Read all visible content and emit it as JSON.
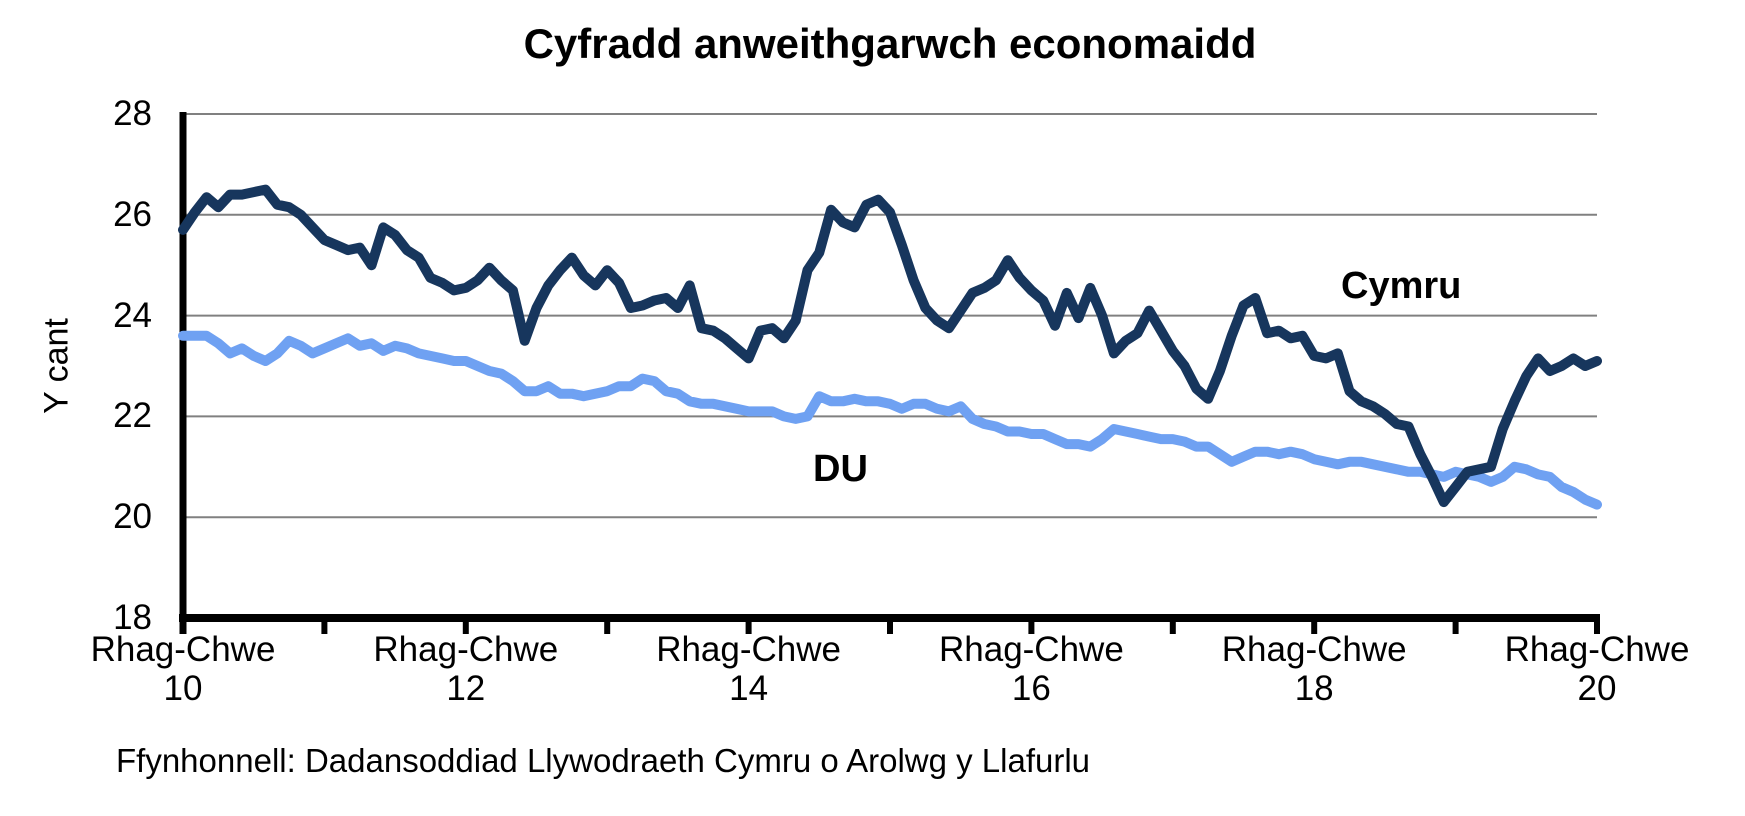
{
  "chart_data": {
    "type": "line",
    "title": "Cyfradd anweithgarwch economaidd",
    "ylabel": "Y cant",
    "ylim": [
      18,
      28
    ],
    "y_ticks": [
      28,
      26,
      24,
      22,
      20,
      18
    ],
    "grid": "horizontal-gray",
    "legend_position": "inline-labels-on-chart",
    "x_start_year": 10,
    "x_end_year": 20,
    "x_points_per_year": 12,
    "x_tick_every_year": 1,
    "x_label_every_years": 2,
    "x_tick_labels": [
      {
        "period": "Rhag-Chwe",
        "year": "10"
      },
      {
        "period": "Rhag-Chwe",
        "year": "12"
      },
      {
        "period": "Rhag-Chwe",
        "year": "14"
      },
      {
        "period": "Rhag-Chwe",
        "year": "16"
      },
      {
        "period": "Rhag-Chwe",
        "year": "18"
      },
      {
        "period": "Rhag-Chwe",
        "year": "20"
      }
    ],
    "series": [
      {
        "name": "DU",
        "color": "#6FA1F2",
        "values": [
          23.6,
          23.6,
          23.6,
          23.45,
          23.25,
          23.35,
          23.2,
          23.1,
          23.25,
          23.5,
          23.4,
          23.25,
          23.35,
          23.45,
          23.55,
          23.4,
          23.45,
          23.3,
          23.4,
          23.35,
          23.25,
          23.2,
          23.15,
          23.1,
          23.1,
          23.0,
          22.9,
          22.85,
          22.7,
          22.5,
          22.5,
          22.6,
          22.45,
          22.45,
          22.4,
          22.45,
          22.5,
          22.6,
          22.6,
          22.75,
          22.7,
          22.5,
          22.45,
          22.3,
          22.25,
          22.25,
          22.2,
          22.15,
          22.1,
          22.1,
          22.1,
          22.0,
          21.95,
          22.0,
          22.4,
          22.3,
          22.3,
          22.35,
          22.3,
          22.3,
          22.25,
          22.15,
          22.25,
          22.25,
          22.15,
          22.1,
          22.2,
          21.95,
          21.85,
          21.8,
          21.7,
          21.7,
          21.65,
          21.65,
          21.55,
          21.45,
          21.45,
          21.4,
          21.55,
          21.75,
          21.7,
          21.65,
          21.6,
          21.55,
          21.55,
          21.5,
          21.4,
          21.4,
          21.25,
          21.1,
          21.2,
          21.3,
          21.3,
          21.25,
          21.3,
          21.25,
          21.15,
          21.1,
          21.05,
          21.1,
          21.1,
          21.05,
          21.0,
          20.95,
          20.9,
          20.9,
          20.85,
          20.8,
          20.9,
          20.85,
          20.8,
          20.7,
          20.8,
          21.0,
          20.95,
          20.85,
          20.8,
          20.6,
          20.5,
          20.35,
          20.25
        ]
      },
      {
        "name": "Cymru",
        "color": "#17365D",
        "values": [
          25.7,
          26.05,
          26.35,
          26.15,
          26.4,
          26.4,
          26.45,
          26.5,
          26.2,
          26.15,
          26.0,
          25.75,
          25.5,
          25.4,
          25.3,
          25.35,
          25.0,
          25.75,
          25.6,
          25.3,
          25.15,
          24.75,
          24.65,
          24.5,
          24.55,
          24.7,
          24.95,
          24.7,
          24.5,
          23.5,
          24.15,
          24.6,
          24.9,
          25.15,
          24.8,
          24.6,
          24.9,
          24.65,
          24.15,
          24.2,
          24.3,
          24.35,
          24.15,
          24.6,
          23.75,
          23.7,
          23.55,
          23.35,
          23.15,
          23.7,
          23.75,
          23.55,
          23.9,
          24.9,
          25.25,
          26.1,
          25.85,
          25.75,
          26.2,
          26.3,
          26.05,
          25.4,
          24.7,
          24.15,
          23.9,
          23.75,
          24.1,
          24.45,
          24.55,
          24.7,
          25.1,
          24.75,
          24.5,
          24.3,
          23.8,
          24.45,
          23.95,
          24.55,
          24.0,
          23.25,
          23.5,
          23.65,
          24.1,
          23.7,
          23.3,
          23.0,
          22.55,
          22.35,
          22.9,
          23.6,
          24.2,
          24.35,
          23.65,
          23.7,
          23.55,
          23.6,
          23.2,
          23.15,
          23.25,
          22.5,
          22.3,
          22.2,
          22.05,
          21.85,
          21.8,
          21.25,
          20.8,
          20.3,
          20.6,
          20.9,
          20.95,
          21.0,
          21.75,
          22.3,
          22.8,
          23.15,
          22.9,
          23.0,
          23.15,
          23.0,
          23.1
        ]
      }
    ],
    "source": "Ffynhonnell: Dadansoddiad Llywodraeth Cymru o Arolwg y Llafurlu",
    "colors": {
      "axis": "#000000",
      "gridline": "#808080",
      "background": "#ffffff",
      "cymru_line": "#17365D",
      "du_line": "#6FA1F2"
    }
  }
}
